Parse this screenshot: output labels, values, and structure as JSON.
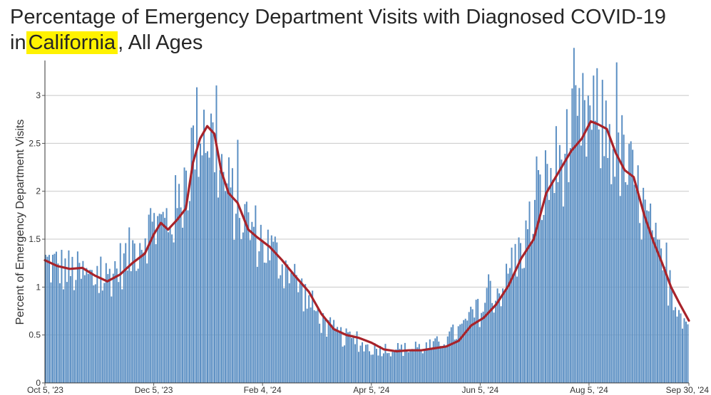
{
  "title": {
    "prefix": "Percentage of Emergency Department Visits with Diagnosed COVID-19",
    "line2_in": "in",
    "location": "California",
    "suffix": ", All Ages"
  },
  "chart_data": {
    "type": "bar",
    "title": "Percentage of Emergency Department Visits with Diagnosed COVID-19 in California, All Ages",
    "ylabel": "Percent of Emergency Department Visits",
    "xlabel": "",
    "ylim": [
      0,
      3.35
    ],
    "yticks": [
      0,
      0.5,
      1,
      1.5,
      2,
      2.5,
      3
    ],
    "ytick_labels": [
      "0",
      "0.5",
      "1",
      "1.5",
      "2",
      "2.5",
      "3"
    ],
    "xticks": [
      "Oct 5, '23",
      "Dec 5, '23",
      "Feb 4, '24",
      "Apr 5, '24",
      "Jun 5, '24",
      "Aug 5, '24",
      "Sep 30, '24"
    ],
    "x_start": "2023-10-05",
    "x_end": "2024-09-30",
    "grid": true,
    "colors": {
      "bars": "#5b8fc3",
      "line": "#a8232a",
      "grid": "#c8c8c8"
    },
    "series": [
      {
        "kind": "daily-bars",
        "anchors": [
          [
            "2023-10-05",
            1.25
          ],
          [
            "2023-10-20",
            1.15
          ],
          [
            "2023-11-05",
            1.05
          ],
          [
            "2023-11-20",
            1.3
          ],
          [
            "2023-12-01",
            1.6
          ],
          [
            "2023-12-10",
            1.65
          ],
          [
            "2023-12-20",
            1.85
          ],
          [
            "2023-12-28",
            2.55
          ],
          [
            "2024-01-02",
            2.75
          ],
          [
            "2024-01-08",
            2.45
          ],
          [
            "2024-01-15",
            2.0
          ],
          [
            "2024-01-25",
            1.7
          ],
          [
            "2024-02-05",
            1.45
          ],
          [
            "2024-02-20",
            1.15
          ],
          [
            "2024-03-01",
            0.85
          ],
          [
            "2024-03-10",
            0.6
          ],
          [
            "2024-03-20",
            0.48
          ],
          [
            "2024-04-05",
            0.36
          ],
          [
            "2024-04-25",
            0.35
          ],
          [
            "2024-05-10",
            0.38
          ],
          [
            "2024-05-25",
            0.55
          ],
          [
            "2024-06-05",
            0.75
          ],
          [
            "2024-06-20",
            1.05
          ],
          [
            "2024-07-01",
            1.5
          ],
          [
            "2024-07-10",
            2.0
          ],
          [
            "2024-07-20",
            2.3
          ],
          [
            "2024-07-28",
            2.55
          ],
          [
            "2024-08-05",
            2.75
          ],
          [
            "2024-08-15",
            2.65
          ],
          [
            "2024-08-25",
            2.3
          ],
          [
            "2024-09-05",
            1.8
          ],
          [
            "2024-09-15",
            1.2
          ],
          [
            "2024-09-30",
            0.6
          ]
        ]
      },
      {
        "kind": "rolling-average-line",
        "points": [
          [
            "2023-10-05",
            1.28
          ],
          [
            "2023-10-12",
            1.22
          ],
          [
            "2023-10-19",
            1.19
          ],
          [
            "2023-10-26",
            1.2
          ],
          [
            "2023-11-02",
            1.12
          ],
          [
            "2023-11-09",
            1.06
          ],
          [
            "2023-11-16",
            1.13
          ],
          [
            "2023-11-23",
            1.25
          ],
          [
            "2023-11-30",
            1.35
          ],
          [
            "2023-12-05",
            1.55
          ],
          [
            "2023-12-09",
            1.67
          ],
          [
            "2023-12-13",
            1.6
          ],
          [
            "2023-12-18",
            1.7
          ],
          [
            "2023-12-23",
            1.82
          ],
          [
            "2023-12-27",
            2.3
          ],
          [
            "2023-12-31",
            2.55
          ],
          [
            "2024-01-04",
            2.68
          ],
          [
            "2024-01-08",
            2.6
          ],
          [
            "2024-01-12",
            2.2
          ],
          [
            "2024-01-16",
            1.98
          ],
          [
            "2024-01-21",
            1.88
          ],
          [
            "2024-01-27",
            1.6
          ],
          [
            "2024-02-01",
            1.52
          ],
          [
            "2024-02-08",
            1.42
          ],
          [
            "2024-02-15",
            1.28
          ],
          [
            "2024-02-22",
            1.12
          ],
          [
            "2024-03-01",
            0.95
          ],
          [
            "2024-03-08",
            0.72
          ],
          [
            "2024-03-15",
            0.56
          ],
          [
            "2024-03-22",
            0.5
          ],
          [
            "2024-03-29",
            0.47
          ],
          [
            "2024-04-05",
            0.42
          ],
          [
            "2024-04-12",
            0.35
          ],
          [
            "2024-04-19",
            0.33
          ],
          [
            "2024-04-26",
            0.34
          ],
          [
            "2024-05-03",
            0.34
          ],
          [
            "2024-05-10",
            0.36
          ],
          [
            "2024-05-17",
            0.38
          ],
          [
            "2024-05-24",
            0.44
          ],
          [
            "2024-05-31",
            0.6
          ],
          [
            "2024-06-07",
            0.68
          ],
          [
            "2024-06-14",
            0.82
          ],
          [
            "2024-06-21",
            1.02
          ],
          [
            "2024-06-28",
            1.3
          ],
          [
            "2024-07-05",
            1.5
          ],
          [
            "2024-07-12",
            1.98
          ],
          [
            "2024-07-19",
            2.2
          ],
          [
            "2024-07-26",
            2.42
          ],
          [
            "2024-08-01",
            2.55
          ],
          [
            "2024-08-06",
            2.73
          ],
          [
            "2024-08-10",
            2.7
          ],
          [
            "2024-08-15",
            2.65
          ],
          [
            "2024-08-20",
            2.4
          ],
          [
            "2024-08-25",
            2.22
          ],
          [
            "2024-08-30",
            2.15
          ],
          [
            "2024-09-05",
            1.75
          ],
          [
            "2024-09-10",
            1.48
          ],
          [
            "2024-09-15",
            1.25
          ],
          [
            "2024-09-20",
            1.0
          ],
          [
            "2024-09-25",
            0.82
          ],
          [
            "2024-09-30",
            0.65
          ]
        ]
      }
    ]
  }
}
